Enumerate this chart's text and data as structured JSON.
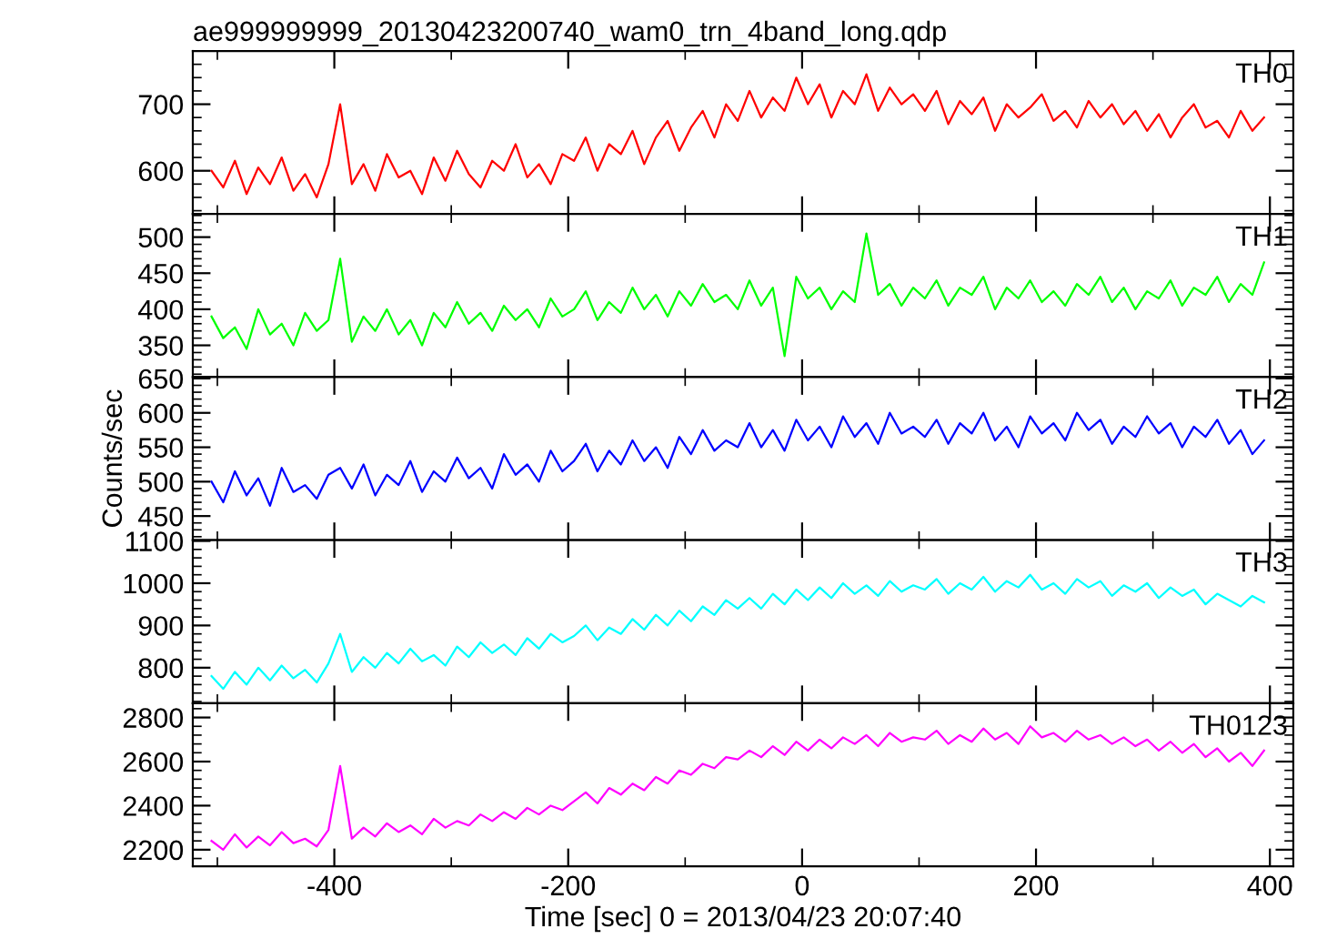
{
  "chart_data": [
    {
      "type": "line",
      "title": "ae999999999_20130423200740_wam0_trn_4band_long.qdp",
      "x": [
        -505,
        -495,
        -485,
        -475,
        -465,
        -455,
        -445,
        -435,
        -425,
        -415,
        -405,
        -395,
        -385,
        -375,
        -365,
        -355,
        -345,
        -335,
        -325,
        -315,
        -305,
        -295,
        -285,
        -275,
        -265,
        -255,
        -245,
        -235,
        -225,
        -215,
        -205,
        -195,
        -185,
        -175,
        -165,
        -155,
        -145,
        -135,
        -125,
        -115,
        -105,
        -95,
        -85,
        -75,
        -65,
        -55,
        -45,
        -35,
        -25,
        -15,
        -5,
        5,
        15,
        25,
        35,
        45,
        55,
        65,
        75,
        85,
        95,
        105,
        115,
        125,
        135,
        145,
        155,
        165,
        175,
        185,
        195,
        205,
        215,
        225,
        235,
        245,
        255,
        265,
        275,
        285,
        295,
        305,
        315,
        325,
        335,
        345,
        355,
        365,
        375,
        385,
        395
      ],
      "xlim": [
        -521,
        420
      ],
      "xticks": [
        -400,
        -200,
        0,
        200,
        400
      ],
      "ylim": [
        535,
        780
      ],
      "yticks": [
        600,
        700
      ],
      "tick_labels": "y",
      "grid": false,
      "series": [
        {
          "name": "TH0",
          "color": "#ff0000",
          "values": [
            600,
            575,
            615,
            565,
            605,
            580,
            620,
            570,
            595,
            560,
            610,
            700,
            580,
            610,
            570,
            625,
            590,
            600,
            565,
            620,
            585,
            630,
            595,
            575,
            615,
            600,
            640,
            590,
            610,
            580,
            625,
            615,
            650,
            600,
            640,
            625,
            660,
            610,
            650,
            675,
            630,
            665,
            690,
            650,
            700,
            675,
            720,
            680,
            710,
            690,
            740,
            700,
            730,
            680,
            720,
            700,
            745,
            690,
            725,
            700,
            715,
            690,
            720,
            670,
            705,
            685,
            710,
            660,
            700,
            680,
            695,
            715,
            675,
            690,
            665,
            705,
            680,
            700,
            670,
            690,
            660,
            685,
            650,
            680,
            700,
            665,
            675,
            650,
            690,
            660,
            680
          ]
        }
      ]
    },
    {
      "type": "line",
      "x": [
        -505,
        -495,
        -485,
        -475,
        -465,
        -455,
        -445,
        -435,
        -425,
        -415,
        -405,
        -395,
        -385,
        -375,
        -365,
        -355,
        -345,
        -335,
        -325,
        -315,
        -305,
        -295,
        -285,
        -275,
        -265,
        -255,
        -245,
        -235,
        -225,
        -215,
        -205,
        -195,
        -185,
        -175,
        -165,
        -155,
        -145,
        -135,
        -125,
        -115,
        -105,
        -95,
        -85,
        -75,
        -65,
        -55,
        -45,
        -35,
        -25,
        -15,
        -5,
        5,
        15,
        25,
        35,
        45,
        55,
        65,
        75,
        85,
        95,
        105,
        115,
        125,
        135,
        145,
        155,
        165,
        175,
        185,
        195,
        205,
        215,
        225,
        235,
        245,
        255,
        265,
        275,
        285,
        295,
        305,
        315,
        325,
        335,
        345,
        355,
        365,
        375,
        385,
        395
      ],
      "xlim": [
        -521,
        420
      ],
      "xticks": [
        -400,
        -200,
        0,
        200,
        400
      ],
      "ylim": [
        306,
        532
      ],
      "yticks": [
        350,
        400,
        450,
        500
      ],
      "tick_labels": "y",
      "grid": false,
      "series": [
        {
          "name": "TH1",
          "color": "#00ff00",
          "values": [
            390,
            360,
            375,
            345,
            400,
            365,
            380,
            350,
            395,
            370,
            385,
            470,
            355,
            390,
            370,
            400,
            365,
            385,
            350,
            395,
            375,
            410,
            380,
            395,
            370,
            405,
            385,
            400,
            375,
            415,
            390,
            400,
            425,
            385,
            410,
            395,
            430,
            400,
            420,
            390,
            425,
            405,
            435,
            410,
            420,
            400,
            440,
            405,
            430,
            335,
            445,
            415,
            430,
            400,
            425,
            410,
            505,
            420,
            435,
            405,
            430,
            415,
            440,
            405,
            430,
            420,
            445,
            400,
            430,
            415,
            440,
            410,
            425,
            405,
            435,
            420,
            445,
            410,
            430,
            400,
            425,
            415,
            440,
            405,
            430,
            420,
            445,
            410,
            435,
            420,
            465
          ]
        }
      ]
    },
    {
      "type": "line",
      "ylabel": "Counts/sec",
      "x": [
        -505,
        -495,
        -485,
        -475,
        -465,
        -455,
        -445,
        -435,
        -425,
        -415,
        -405,
        -395,
        -385,
        -375,
        -365,
        -355,
        -345,
        -335,
        -325,
        -315,
        -305,
        -295,
        -285,
        -275,
        -265,
        -255,
        -245,
        -235,
        -225,
        -215,
        -205,
        -195,
        -185,
        -175,
        -165,
        -155,
        -145,
        -135,
        -125,
        -115,
        -105,
        -95,
        -85,
        -75,
        -65,
        -55,
        -45,
        -35,
        -25,
        -15,
        -5,
        5,
        15,
        25,
        35,
        45,
        55,
        65,
        75,
        85,
        95,
        105,
        115,
        125,
        135,
        145,
        155,
        165,
        175,
        185,
        195,
        205,
        215,
        225,
        235,
        245,
        255,
        265,
        275,
        285,
        295,
        305,
        315,
        325,
        335,
        345,
        355,
        365,
        375,
        385,
        395
      ],
      "xlim": [
        -521,
        420
      ],
      "xticks": [
        -400,
        -200,
        0,
        200,
        400
      ],
      "ylim": [
        415,
        652
      ],
      "yticks": [
        450,
        500,
        550,
        600,
        650
      ],
      "tick_labels": "y",
      "grid": false,
      "series": [
        {
          "name": "TH2",
          "color": "#0000ff",
          "values": [
            500,
            470,
            515,
            480,
            505,
            465,
            520,
            485,
            495,
            475,
            510,
            520,
            490,
            525,
            480,
            510,
            495,
            530,
            485,
            515,
            500,
            535,
            505,
            520,
            490,
            540,
            510,
            525,
            500,
            545,
            515,
            530,
            555,
            515,
            545,
            525,
            560,
            530,
            550,
            520,
            565,
            540,
            575,
            545,
            560,
            550,
            585,
            550,
            575,
            545,
            590,
            560,
            580,
            550,
            595,
            565,
            585,
            555,
            600,
            570,
            580,
            565,
            590,
            555,
            585,
            570,
            600,
            560,
            580,
            550,
            595,
            570,
            585,
            560,
            600,
            575,
            590,
            555,
            580,
            565,
            595,
            570,
            585,
            550,
            580,
            565,
            590,
            555,
            575,
            540,
            560
          ]
        }
      ]
    },
    {
      "type": "line",
      "x": [
        -505,
        -495,
        -485,
        -475,
        -465,
        -455,
        -445,
        -435,
        -425,
        -415,
        -405,
        -395,
        -385,
        -375,
        -365,
        -355,
        -345,
        -335,
        -325,
        -315,
        -305,
        -295,
        -285,
        -275,
        -265,
        -255,
        -245,
        -235,
        -225,
        -215,
        -205,
        -195,
        -185,
        -175,
        -165,
        -155,
        -145,
        -135,
        -125,
        -115,
        -105,
        -95,
        -85,
        -75,
        -65,
        -55,
        -45,
        -35,
        -25,
        -15,
        -5,
        5,
        15,
        25,
        35,
        45,
        55,
        65,
        75,
        85,
        95,
        105,
        115,
        125,
        135,
        145,
        155,
        165,
        175,
        185,
        195,
        205,
        215,
        225,
        235,
        245,
        255,
        265,
        275,
        285,
        295,
        305,
        315,
        325,
        335,
        345,
        355,
        365,
        375,
        385,
        395
      ],
      "xlim": [
        -521,
        420
      ],
      "xticks": [
        -400,
        -200,
        0,
        200,
        400
      ],
      "ylim": [
        716,
        1102
      ],
      "yticks": [
        800,
        900,
        1000,
        1100
      ],
      "tick_labels": "y",
      "grid": false,
      "series": [
        {
          "name": "TH3",
          "color": "#00ffff",
          "values": [
            780,
            750,
            790,
            760,
            800,
            770,
            805,
            775,
            795,
            765,
            810,
            880,
            790,
            825,
            800,
            835,
            810,
            845,
            815,
            830,
            805,
            850,
            825,
            860,
            835,
            855,
            830,
            870,
            845,
            880,
            860,
            875,
            900,
            865,
            895,
            880,
            915,
            890,
            925,
            900,
            935,
            910,
            945,
            925,
            960,
            940,
            965,
            940,
            975,
            950,
            985,
            960,
            990,
            965,
            1000,
            975,
            995,
            970,
            1005,
            980,
            995,
            985,
            1010,
            975,
            1000,
            985,
            1015,
            980,
            1005,
            990,
            1020,
            985,
            1000,
            975,
            1010,
            990,
            1005,
            970,
            995,
            980,
            1000,
            965,
            990,
            970,
            985,
            950,
            975,
            960,
            945,
            970,
            955
          ]
        }
      ]
    },
    {
      "type": "line",
      "xlabel": "Time [sec] 0 = 2013/04/23 20:07:40",
      "x": [
        -505,
        -495,
        -485,
        -475,
        -465,
        -455,
        -445,
        -435,
        -425,
        -415,
        -405,
        -395,
        -385,
        -375,
        -365,
        -355,
        -345,
        -335,
        -325,
        -315,
        -305,
        -295,
        -285,
        -275,
        -265,
        -255,
        -245,
        -235,
        -225,
        -215,
        -205,
        -195,
        -185,
        -175,
        -165,
        -155,
        -145,
        -135,
        -125,
        -115,
        -105,
        -95,
        -85,
        -75,
        -65,
        -55,
        -45,
        -35,
        -25,
        -15,
        -5,
        5,
        15,
        25,
        35,
        45,
        55,
        65,
        75,
        85,
        95,
        105,
        115,
        125,
        135,
        145,
        155,
        165,
        175,
        185,
        195,
        205,
        215,
        225,
        235,
        245,
        255,
        265,
        275,
        285,
        295,
        305,
        315,
        325,
        335,
        345,
        355,
        365,
        375,
        385,
        395
      ],
      "xlim": [
        -521,
        420
      ],
      "xticks": [
        -400,
        -200,
        0,
        200,
        400
      ],
      "ylim": [
        2125,
        2865
      ],
      "yticks": [
        2200,
        2400,
        2600,
        2800
      ],
      "grid": false,
      "series": [
        {
          "name": "TH0123",
          "color": "#ff00ff",
          "values": [
            2240,
            2200,
            2270,
            2210,
            2260,
            2220,
            2280,
            2230,
            2250,
            2215,
            2290,
            2580,
            2250,
            2300,
            2260,
            2320,
            2280,
            2310,
            2270,
            2340,
            2300,
            2330,
            2310,
            2360,
            2330,
            2370,
            2340,
            2390,
            2360,
            2400,
            2380,
            2420,
            2460,
            2410,
            2480,
            2450,
            2500,
            2470,
            2530,
            2500,
            2560,
            2540,
            2590,
            2570,
            2620,
            2610,
            2650,
            2620,
            2670,
            2630,
            2690,
            2650,
            2700,
            2660,
            2710,
            2680,
            2720,
            2670,
            2730,
            2690,
            2710,
            2700,
            2740,
            2680,
            2720,
            2690,
            2750,
            2700,
            2730,
            2680,
            2760,
            2710,
            2730,
            2690,
            2740,
            2700,
            2720,
            2680,
            2710,
            2670,
            2700,
            2650,
            2690,
            2640,
            2680,
            2620,
            2660,
            2600,
            2640,
            2580,
            2650
          ]
        }
      ]
    }
  ]
}
